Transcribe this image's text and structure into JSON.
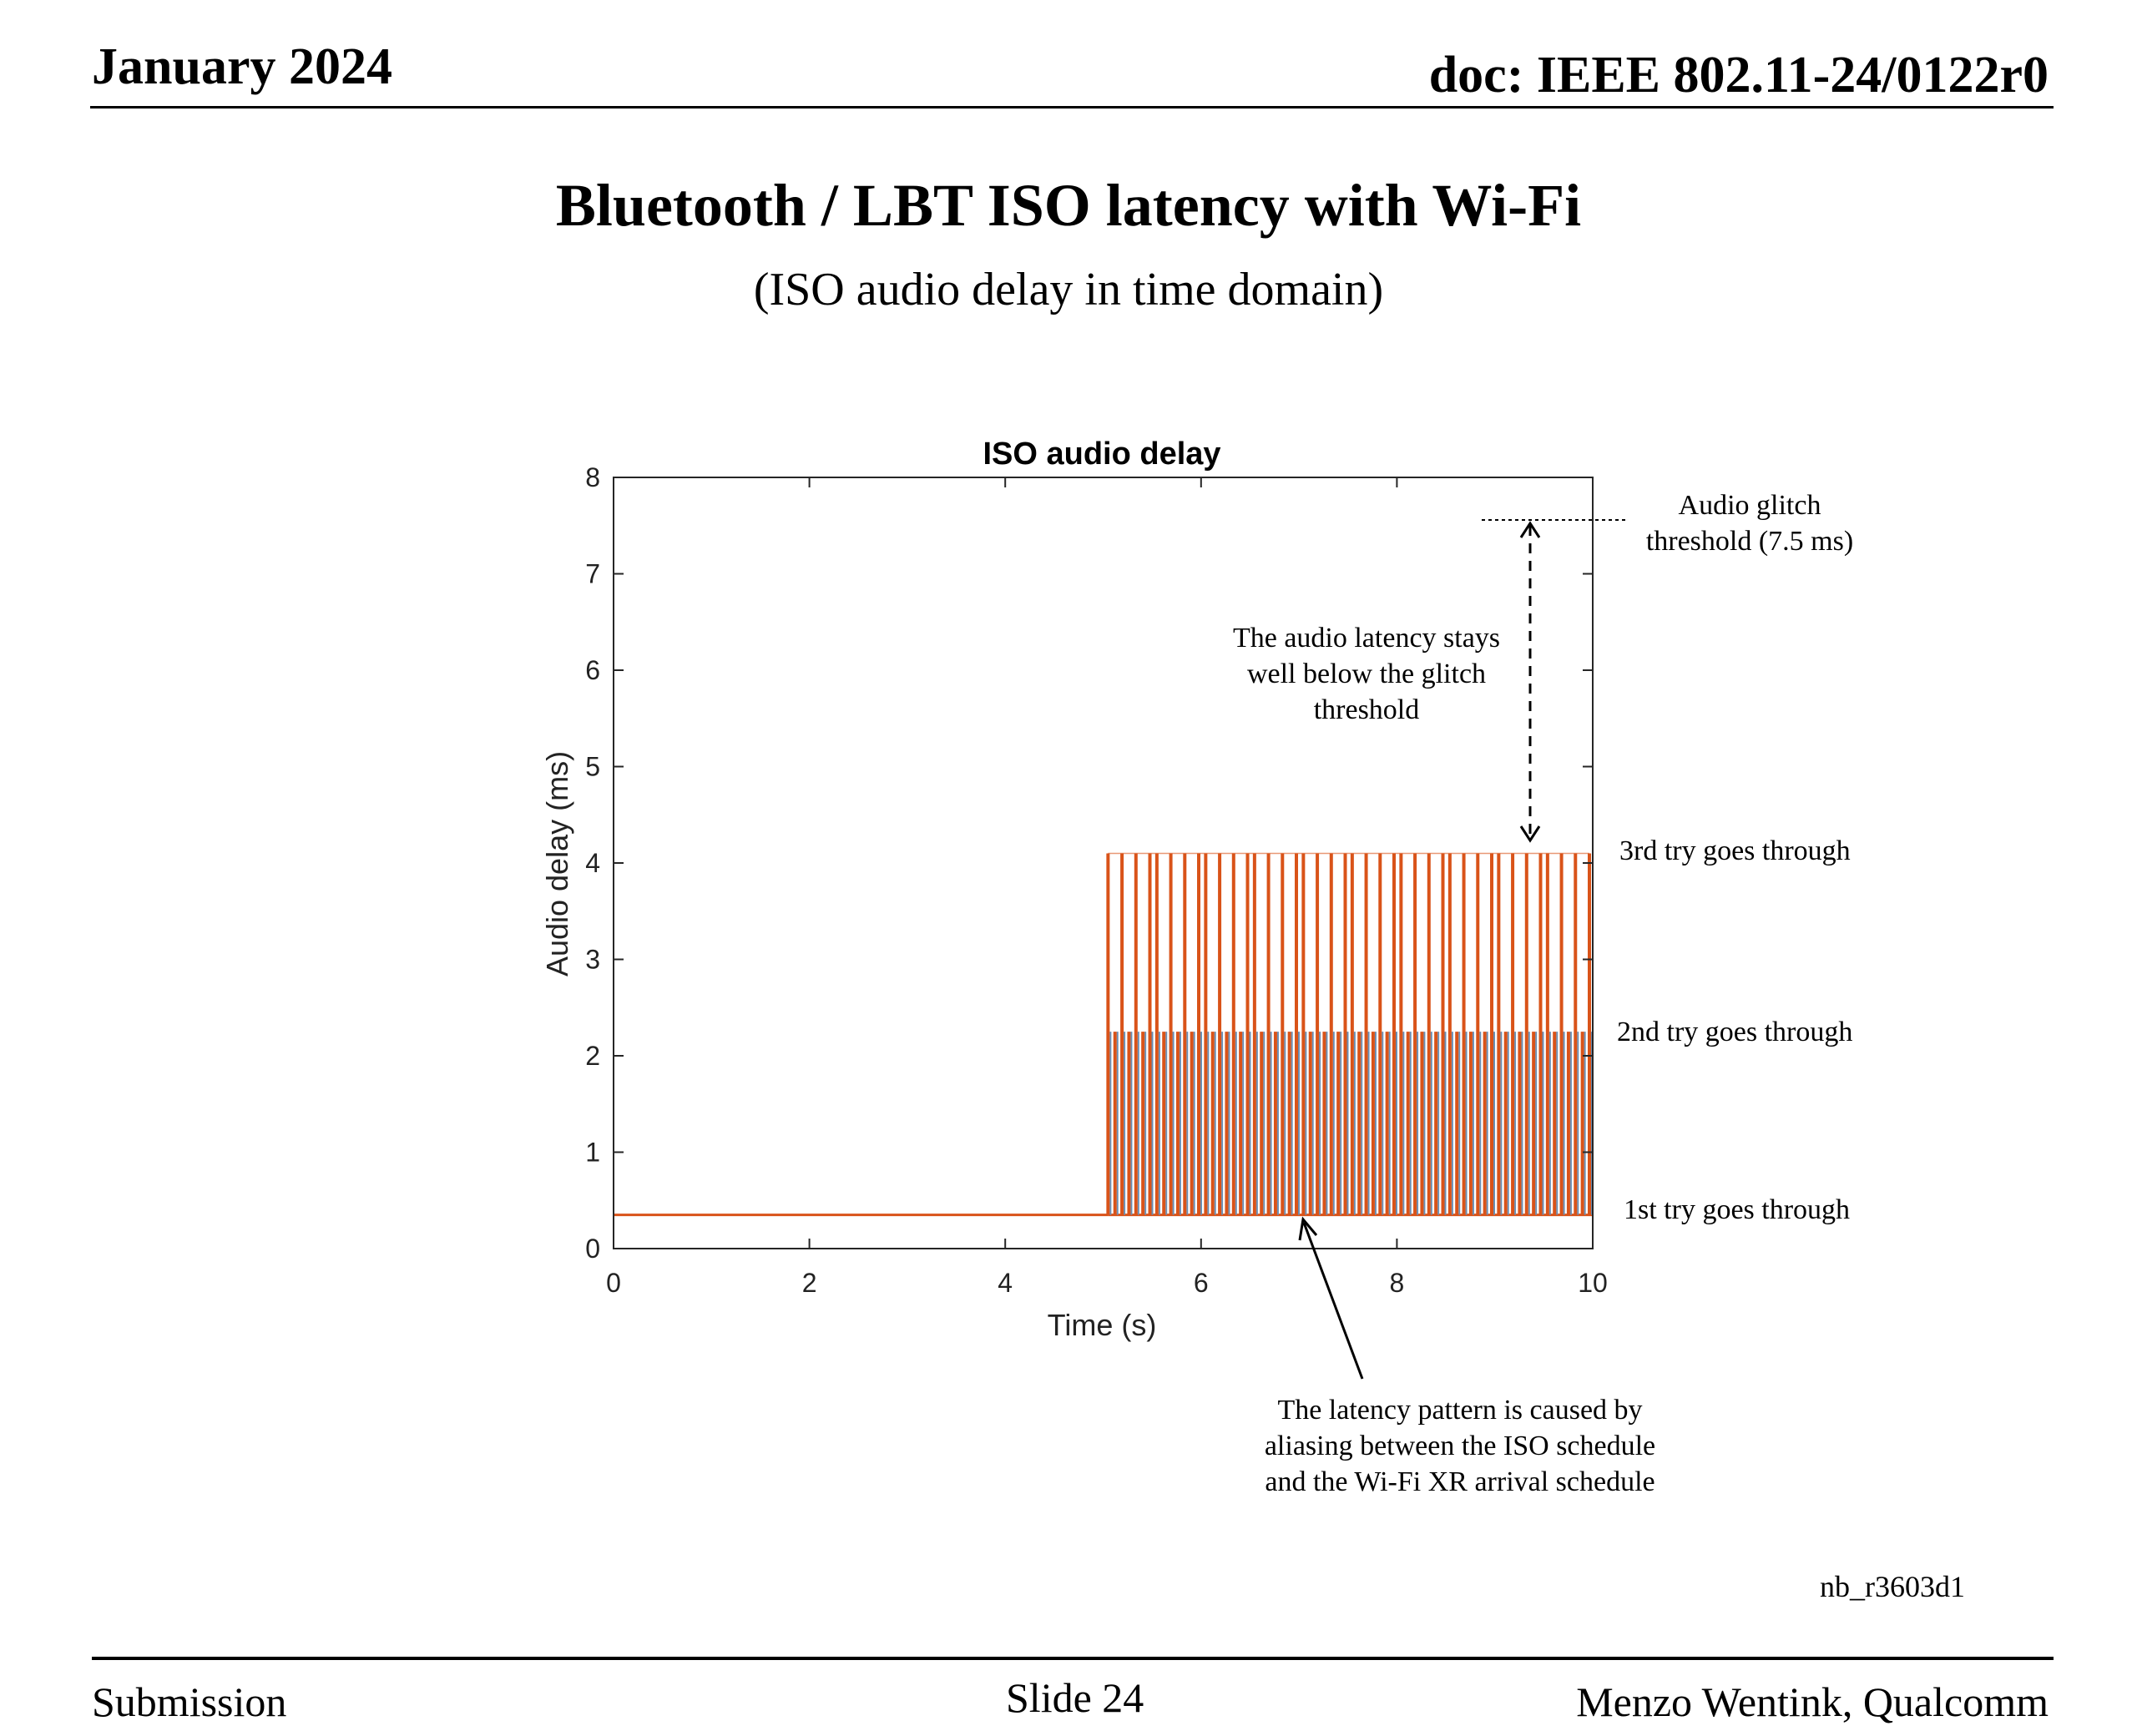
{
  "header": {
    "date": "January 2024",
    "doc": "doc: IEEE 802.11-24/0122r0"
  },
  "slide": {
    "title": "Bluetooth / LBT ISO latency with Wi-Fi",
    "subtitle": "(ISO audio delay in time domain)"
  },
  "footer": {
    "left": "Submission",
    "center": "Slide 24",
    "right": "Menzo Wentink, Qualcomm"
  },
  "figure_id": "nb_r3603d1",
  "annotations": {
    "threshold_line1": "Audio glitch",
    "threshold_line2": "threshold (7.5 ms)",
    "stays_line1": "The audio latency stays",
    "stays_line2": "well below the glitch",
    "stays_line3": "threshold",
    "try3": "3rd try goes through",
    "try2": "2nd try goes through",
    "try1": "1st try goes through",
    "cause_line1": "The latency pattern is caused by",
    "cause_line2": "aliasing between the ISO schedule",
    "cause_line3": "and the Wi-Fi XR arrival schedule"
  },
  "colors": {
    "primary": "#d95319",
    "secondary": "#6a8fb4"
  },
  "chart_data": {
    "type": "line",
    "title": "ISO audio delay",
    "xlabel": "Time (s)",
    "ylabel": "Audio delay (ms)",
    "xlim": [
      0,
      10
    ],
    "ylim": [
      0,
      8
    ],
    "xticks": [
      "0",
      "2",
      "4",
      "6",
      "8",
      "10"
    ],
    "yticks": [
      "0",
      "1",
      "2",
      "3",
      "4",
      "5",
      "6",
      "7",
      "8"
    ],
    "series": [
      {
        "name": "ISO audio delay",
        "baseline_ms": 0.35,
        "spike_levels_ms": [
          2.25,
          4.1
        ],
        "spikes_start_s": 5.05,
        "spikes_end_s": 10
      }
    ],
    "threshold_ms": 7.5,
    "spike_pattern": [
      2,
      1,
      2,
      1,
      2,
      1,
      2,
      2,
      1,
      2,
      1,
      2,
      1,
      2,
      2,
      1,
      2,
      1,
      2,
      1,
      2,
      2,
      1,
      2,
      1,
      2,
      1,
      2,
      2,
      1,
      2,
      1,
      2,
      1,
      2,
      2,
      1,
      2,
      1,
      2,
      1,
      2,
      2,
      1,
      2,
      1,
      2,
      1,
      2,
      2,
      1,
      2,
      1,
      2,
      1,
      2,
      2,
      1,
      2,
      1,
      2,
      1,
      2,
      2,
      1,
      2,
      1,
      2,
      1,
      2
    ]
  }
}
